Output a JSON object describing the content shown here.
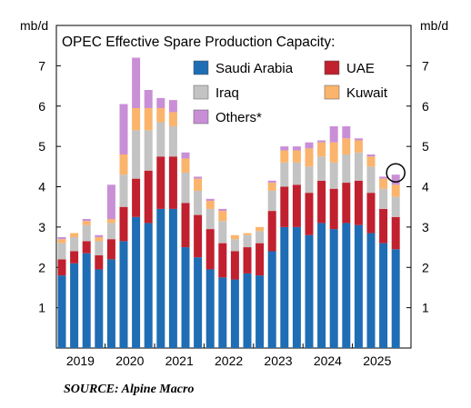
{
  "chart_data": {
    "type": "stacked-bar",
    "title": "OPEC Effective Spare Production Capacity:",
    "y_label": "mb/d",
    "y2_label": "mb/d",
    "categories": [
      "2019",
      null,
      null,
      null,
      "2020",
      null,
      null,
      null,
      "2021",
      null,
      null,
      null,
      "2022",
      null,
      null,
      null,
      "2023",
      null,
      null,
      null,
      "2024",
      null,
      null,
      null,
      "2025",
      null,
      null,
      null
    ],
    "series": [
      {
        "name": "Saudi Arabia",
        "color": "#1f6db4",
        "values": [
          1.8,
          2.1,
          2.35,
          1.95,
          2.2,
          2.65,
          3.25,
          3.1,
          3.45,
          3.45,
          2.5,
          2.25,
          1.95,
          1.75,
          1.7,
          1.85,
          1.8,
          2.4,
          3.0,
          3.0,
          2.8,
          3.1,
          2.95,
          3.1,
          3.05,
          2.85,
          2.6,
          2.45
        ]
      },
      {
        "name": "UAE",
        "color": "#c1202e",
        "values": [
          0.4,
          0.3,
          0.3,
          0.35,
          0.5,
          0.85,
          0.95,
          1.3,
          1.3,
          1.3,
          1.1,
          1.05,
          1.0,
          0.85,
          0.7,
          0.65,
          0.8,
          1.0,
          1.0,
          1.05,
          1.05,
          1.05,
          1.0,
          1.0,
          1.1,
          1.0,
          0.85,
          0.8
        ]
      },
      {
        "name": "Iraq",
        "color": "#c3c3c3",
        "values": [
          0.4,
          0.35,
          0.4,
          0.35,
          0.4,
          0.8,
          1.2,
          1.0,
          0.85,
          0.75,
          0.75,
          0.6,
          0.5,
          0.55,
          0.3,
          0.3,
          0.3,
          0.5,
          0.6,
          0.55,
          0.65,
          0.6,
          0.65,
          0.7,
          0.7,
          0.65,
          0.5,
          0.5
        ]
      },
      {
        "name": "Kuwait",
        "color": "#fbb46c",
        "values": [
          0.1,
          0.1,
          0.1,
          0.1,
          0.1,
          0.5,
          0.55,
          0.55,
          0.35,
          0.35,
          0.35,
          0.3,
          0.2,
          0.25,
          0.1,
          0.05,
          0.1,
          0.2,
          0.3,
          0.3,
          0.45,
          0.35,
          0.5,
          0.4,
          0.3,
          0.25,
          0.25,
          0.3
        ]
      },
      {
        "name": "Others*",
        "color": "#c98fd6",
        "values": [
          0.05,
          0,
          0.05,
          0.05,
          0.85,
          1.25,
          1.25,
          0.45,
          0.25,
          0.3,
          0.15,
          0.05,
          0.05,
          0.05,
          0,
          0,
          0,
          0.05,
          0.1,
          0.1,
          0.15,
          0.05,
          0.4,
          0.3,
          0.05,
          0.05,
          0.05,
          0.25
        ]
      }
    ],
    "ylim": [
      0,
      8
    ],
    "yticks": [
      1,
      2,
      3,
      4,
      5,
      6,
      7
    ],
    "source": "SOURCE: Alpine Macro"
  }
}
